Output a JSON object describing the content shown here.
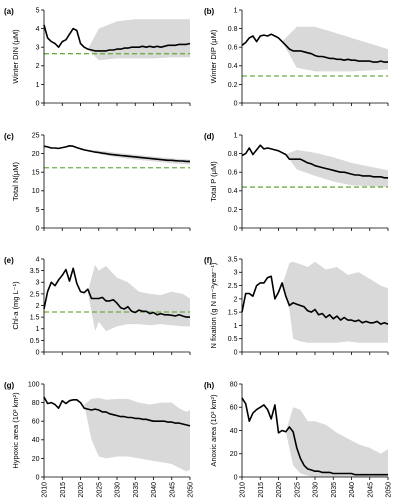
{
  "colors": {
    "line": "#000000",
    "band": "#d9d9d9",
    "reference": "#70ad47"
  },
  "chart_data": [
    {
      "type": "line",
      "panel_label": "(a)",
      "ylabel": "Winter DIN (μM)",
      "ylim": [
        0,
        5
      ],
      "yticks": [
        0,
        1,
        2,
        3,
        4,
        5
      ],
      "ytick_labels": [
        "0",
        "1",
        "2",
        "3",
        "4",
        "5"
      ],
      "xlim": [
        2010,
        2050
      ],
      "xticks": [
        2010,
        2015,
        2020,
        2025,
        2030,
        2035,
        2040,
        2045,
        2050
      ],
      "show_xtick_labels": false,
      "reference": 2.65,
      "x": [
        2010,
        2011,
        2012,
        2013,
        2014,
        2015,
        2016,
        2017,
        2018,
        2019,
        2020,
        2021,
        2022,
        2023,
        2024,
        2025,
        2026,
        2027,
        2028,
        2029,
        2030,
        2031,
        2032,
        2033,
        2034,
        2035,
        2036,
        2037,
        2038,
        2039,
        2040,
        2041,
        2042,
        2043,
        2044,
        2045,
        2046,
        2047,
        2048,
        2049,
        2050
      ],
      "y": [
        4.2,
        3.5,
        3.3,
        3.2,
        3.0,
        3.3,
        3.4,
        3.7,
        4.0,
        3.9,
        3.2,
        3.0,
        2.9,
        2.85,
        2.8,
        2.8,
        2.8,
        2.8,
        2.85,
        2.85,
        2.9,
        2.9,
        2.95,
        2.95,
        3.0,
        3.0,
        3.0,
        3.05,
        3.0,
        3.05,
        3.0,
        3.05,
        3.0,
        3.05,
        3.1,
        3.1,
        3.1,
        3.15,
        3.15,
        3.15,
        3.2
      ],
      "band_x": [
        2022,
        2025,
        2030,
        2035,
        2040,
        2045,
        2050
      ],
      "band_low": [
        2.9,
        2.3,
        2.4,
        2.4,
        2.4,
        2.45,
        2.45
      ],
      "band_high": [
        2.9,
        4.0,
        4.4,
        4.5,
        4.5,
        4.5,
        4.5
      ]
    },
    {
      "type": "line",
      "panel_label": "(b)",
      "ylabel": "Winter DIP (μM)",
      "ylim": [
        0,
        1
      ],
      "yticks": [
        0,
        0.2,
        0.4,
        0.6,
        0.8,
        1
      ],
      "ytick_labels": [
        "0",
        "0.2",
        "0.4",
        "0.6",
        "0.8",
        "1"
      ],
      "xlim": [
        2010,
        2050
      ],
      "xticks": [
        2010,
        2015,
        2020,
        2025,
        2030,
        2035,
        2040,
        2045,
        2050
      ],
      "show_xtick_labels": false,
      "reference": 0.29,
      "x": [
        2010,
        2011,
        2012,
        2013,
        2014,
        2015,
        2016,
        2017,
        2018,
        2019,
        2020,
        2021,
        2022,
        2023,
        2024,
        2025,
        2026,
        2027,
        2028,
        2029,
        2030,
        2031,
        2032,
        2033,
        2034,
        2035,
        2036,
        2037,
        2038,
        2039,
        2040,
        2041,
        2042,
        2043,
        2044,
        2045,
        2046,
        2047,
        2048,
        2049,
        2050
      ],
      "y": [
        0.62,
        0.65,
        0.7,
        0.72,
        0.66,
        0.72,
        0.73,
        0.72,
        0.74,
        0.72,
        0.7,
        0.66,
        0.62,
        0.58,
        0.56,
        0.56,
        0.56,
        0.55,
        0.54,
        0.53,
        0.51,
        0.5,
        0.5,
        0.49,
        0.48,
        0.48,
        0.47,
        0.47,
        0.46,
        0.47,
        0.46,
        0.46,
        0.45,
        0.45,
        0.45,
        0.45,
        0.44,
        0.44,
        0.45,
        0.44,
        0.44
      ],
      "band_x": [
        2021,
        2025,
        2030,
        2035,
        2040,
        2045,
        2050
      ],
      "band_low": [
        0.66,
        0.38,
        0.34,
        0.34,
        0.34,
        0.35,
        0.36
      ],
      "band_high": [
        0.66,
        0.82,
        0.82,
        0.76,
        0.7,
        0.64,
        0.58
      ]
    },
    {
      "type": "line",
      "panel_label": "(c)",
      "ylabel": "Total N(μM)",
      "ylim": [
        0,
        25
      ],
      "yticks": [
        0,
        5,
        10,
        15,
        20,
        25
      ],
      "ytick_labels": [
        "0",
        "5",
        "10",
        "15",
        "20",
        "25"
      ],
      "xlim": [
        2010,
        2050
      ],
      "xticks": [
        2010,
        2015,
        2020,
        2025,
        2030,
        2035,
        2040,
        2045,
        2050
      ],
      "show_xtick_labels": false,
      "reference": 16.2,
      "x": [
        2010,
        2011,
        2012,
        2013,
        2014,
        2015,
        2016,
        2017,
        2018,
        2019,
        2020,
        2021,
        2022,
        2023,
        2024,
        2025,
        2026,
        2027,
        2028,
        2029,
        2030,
        2031,
        2032,
        2033,
        2034,
        2035,
        2036,
        2037,
        2038,
        2039,
        2040,
        2041,
        2042,
        2043,
        2044,
        2045,
        2046,
        2047,
        2048,
        2049,
        2050
      ],
      "y": [
        22.0,
        21.8,
        21.5,
        21.5,
        21.4,
        21.6,
        21.8,
        22.1,
        22.0,
        21.6,
        21.3,
        21.0,
        20.8,
        20.6,
        20.4,
        20.3,
        20.1,
        20.0,
        19.8,
        19.7,
        19.6,
        19.5,
        19.4,
        19.3,
        19.2,
        19.1,
        19.0,
        18.9,
        18.8,
        18.7,
        18.6,
        18.5,
        18.4,
        18.3,
        18.2,
        18.2,
        18.1,
        18.0,
        18.0,
        17.9,
        17.9
      ],
      "band_x": [
        2020,
        2025,
        2030,
        2035,
        2040,
        2045,
        2050
      ],
      "band_low": [
        21.3,
        19.9,
        19.0,
        18.4,
        17.9,
        17.4,
        17.1
      ],
      "band_high": [
        21.3,
        20.8,
        20.2,
        19.7,
        19.2,
        18.7,
        18.4
      ]
    },
    {
      "type": "line",
      "panel_label": "(d)",
      "ylabel": "Total P (μM)",
      "ylim": [
        0,
        1
      ],
      "yticks": [
        0,
        0.2,
        0.4,
        0.6,
        0.8,
        1
      ],
      "ytick_labels": [
        "0",
        "0.2",
        "0.4",
        "0.6",
        "0.8",
        "1"
      ],
      "xlim": [
        2010,
        2050
      ],
      "xticks": [
        2010,
        2015,
        2020,
        2025,
        2030,
        2035,
        2040,
        2045,
        2050
      ],
      "show_xtick_labels": false,
      "reference": 0.44,
      "x": [
        2010,
        2011,
        2012,
        2013,
        2014,
        2015,
        2016,
        2017,
        2018,
        2019,
        2020,
        2021,
        2022,
        2023,
        2024,
        2025,
        2026,
        2027,
        2028,
        2029,
        2030,
        2031,
        2032,
        2033,
        2034,
        2035,
        2036,
        2037,
        2038,
        2039,
        2040,
        2041,
        2042,
        2043,
        2044,
        2045,
        2046,
        2047,
        2048,
        2049,
        2050
      ],
      "y": [
        0.78,
        0.8,
        0.86,
        0.79,
        0.84,
        0.89,
        0.85,
        0.86,
        0.85,
        0.84,
        0.83,
        0.81,
        0.79,
        0.74,
        0.74,
        0.74,
        0.74,
        0.72,
        0.7,
        0.69,
        0.67,
        0.66,
        0.65,
        0.64,
        0.63,
        0.62,
        0.61,
        0.6,
        0.6,
        0.59,
        0.58,
        0.57,
        0.57,
        0.56,
        0.56,
        0.56,
        0.55,
        0.55,
        0.55,
        0.54,
        0.54
      ],
      "band_x": [
        2022,
        2025,
        2030,
        2035,
        2040,
        2045,
        2050
      ],
      "band_low": [
        0.79,
        0.63,
        0.56,
        0.5,
        0.46,
        0.45,
        0.44
      ],
      "band_high": [
        0.79,
        0.84,
        0.81,
        0.76,
        0.7,
        0.66,
        0.62
      ]
    },
    {
      "type": "line",
      "panel_label": "(e)",
      "ylabel": "Chl-a (mg L⁻¹)",
      "ylim": [
        0,
        4
      ],
      "yticks": [
        0,
        0.5,
        1,
        1.5,
        2,
        2.5,
        3,
        3.5,
        4
      ],
      "ytick_labels": [
        "0",
        "0.5",
        "1",
        "1.5",
        "2",
        "2.5",
        "3",
        "3.5",
        "4"
      ],
      "xlim": [
        2010,
        2050
      ],
      "xticks": [
        2010,
        2015,
        2020,
        2025,
        2030,
        2035,
        2040,
        2045,
        2050
      ],
      "show_xtick_labels": false,
      "reference": 1.72,
      "x": [
        2010,
        2011,
        2012,
        2013,
        2014,
        2015,
        2016,
        2017,
        2018,
        2019,
        2020,
        2021,
        2022,
        2023,
        2024,
        2025,
        2026,
        2027,
        2028,
        2029,
        2030,
        2031,
        2032,
        2033,
        2034,
        2035,
        2036,
        2037,
        2038,
        2039,
        2040,
        2041,
        2042,
        2043,
        2044,
        2045,
        2046,
        2047,
        2048,
        2049,
        2050
      ],
      "y": [
        1.85,
        2.6,
        3.0,
        2.85,
        3.1,
        3.3,
        3.55,
        3.05,
        3.6,
        2.95,
        2.6,
        2.55,
        2.7,
        2.3,
        2.3,
        2.3,
        2.35,
        2.2,
        2.2,
        2.25,
        2.1,
        1.9,
        1.85,
        1.95,
        1.75,
        1.7,
        1.8,
        1.75,
        1.75,
        1.65,
        1.7,
        1.6,
        1.65,
        1.6,
        1.6,
        1.58,
        1.55,
        1.6,
        1.55,
        1.5,
        1.5
      ],
      "band_x": [
        2022,
        2024,
        2025,
        2027,
        2030,
        2033,
        2036,
        2039,
        2042,
        2045,
        2048,
        2050
      ],
      "band_low": [
        2.6,
        0.9,
        1.3,
        0.9,
        1.1,
        1.2,
        1.2,
        1.15,
        1.2,
        1.15,
        1.1,
        1.1
      ],
      "band_high": [
        2.6,
        3.75,
        3.5,
        3.7,
        3.2,
        3.0,
        2.6,
        2.5,
        2.45,
        2.6,
        2.5,
        2.3
      ]
    },
    {
      "type": "line",
      "panel_label": "(f)",
      "ylabel": "N fixation (g N m⁻²year⁻¹)",
      "ylim": [
        0,
        3.5
      ],
      "yticks": [
        0,
        0.5,
        1,
        1.5,
        2,
        2.5,
        3,
        3.5
      ],
      "ytick_labels": [
        "0",
        "0.5",
        "1",
        "1.5",
        "2",
        "2.5",
        "3",
        "3.5"
      ],
      "xlim": [
        2010,
        2050
      ],
      "xticks": [
        2010,
        2015,
        2020,
        2025,
        2030,
        2035,
        2040,
        2045,
        2050
      ],
      "show_xtick_labels": false,
      "x": [
        2010,
        2011,
        2012,
        2013,
        2014,
        2015,
        2016,
        2017,
        2018,
        2019,
        2020,
        2021,
        2022,
        2023,
        2024,
        2025,
        2026,
        2027,
        2028,
        2029,
        2030,
        2031,
        2032,
        2033,
        2034,
        2035,
        2036,
        2037,
        2038,
        2039,
        2040,
        2041,
        2042,
        2043,
        2044,
        2045,
        2046,
        2047,
        2048,
        2049,
        2050
      ],
      "y": [
        1.5,
        2.2,
        2.2,
        2.1,
        2.5,
        2.6,
        2.6,
        2.8,
        2.85,
        2.0,
        2.25,
        2.6,
        2.1,
        1.75,
        1.85,
        1.8,
        1.75,
        1.7,
        1.55,
        1.5,
        1.6,
        1.4,
        1.45,
        1.3,
        1.4,
        1.25,
        1.35,
        1.2,
        1.3,
        1.2,
        1.2,
        1.15,
        1.2,
        1.1,
        1.15,
        1.1,
        1.1,
        1.15,
        1.05,
        1.1,
        1.05
      ],
      "band_x": [
        2021,
        2023,
        2024,
        2026,
        2028,
        2030,
        2033,
        2036,
        2039,
        2042,
        2045,
        2048,
        2050
      ],
      "band_low": [
        2.5,
        1.6,
        0.5,
        0.4,
        0.35,
        0.35,
        0.35,
        0.35,
        0.4,
        0.35,
        0.35,
        0.35,
        0.35
      ],
      "band_high": [
        2.5,
        3.35,
        3.4,
        3.3,
        3.2,
        3.4,
        3.1,
        3.2,
        2.9,
        3.0,
        2.75,
        2.5,
        2.4
      ]
    },
    {
      "type": "line",
      "panel_label": "(g)",
      "ylabel": "Hypoxic area (10³ km²)",
      "ylim": [
        0,
        100
      ],
      "yticks": [
        0,
        20,
        40,
        60,
        80,
        100
      ],
      "ytick_labels": [
        "0",
        "20",
        "40",
        "60",
        "80",
        "100"
      ],
      "xlim": [
        2010,
        2050
      ],
      "xticks": [
        2010,
        2015,
        2020,
        2025,
        2030,
        2035,
        2040,
        2045,
        2050
      ],
      "show_xtick_labels": true,
      "x": [
        2010,
        2011,
        2012,
        2013,
        2014,
        2015,
        2016,
        2017,
        2018,
        2019,
        2020,
        2021,
        2022,
        2023,
        2024,
        2025,
        2026,
        2027,
        2028,
        2029,
        2030,
        2031,
        2032,
        2033,
        2034,
        2035,
        2036,
        2037,
        2038,
        2039,
        2040,
        2041,
        2042,
        2043,
        2044,
        2045,
        2046,
        2047,
        2048,
        2049,
        2050
      ],
      "y": [
        86,
        79,
        80,
        78,
        74,
        82,
        79,
        82,
        83,
        83,
        80,
        74,
        73,
        72,
        73,
        72,
        70,
        70,
        68,
        67,
        66,
        65,
        65,
        64,
        64,
        63,
        63,
        62,
        62,
        61,
        60,
        60,
        60,
        60,
        59,
        59,
        58,
        58,
        57,
        56,
        55
      ],
      "band_x": [
        2021,
        2023,
        2025,
        2027,
        2030,
        2033,
        2036,
        2039,
        2042,
        2045,
        2047,
        2049,
        2050
      ],
      "band_low": [
        78,
        40,
        22,
        20,
        22,
        22,
        20,
        18,
        16,
        14,
        10,
        6,
        8
      ],
      "band_high": [
        78,
        84,
        85,
        83,
        84,
        84,
        80,
        78,
        80,
        80,
        74,
        70,
        72
      ]
    },
    {
      "type": "line",
      "panel_label": "(h)",
      "ylabel": "Anoxic area (10³ km²)",
      "ylim": [
        0,
        80
      ],
      "yticks": [
        0,
        20,
        40,
        60,
        80
      ],
      "ytick_labels": [
        "0",
        "20",
        "40",
        "60",
        "80"
      ],
      "xlim": [
        2010,
        2050
      ],
      "xticks": [
        2010,
        2015,
        2020,
        2025,
        2030,
        2035,
        2040,
        2045,
        2050
      ],
      "show_xtick_labels": true,
      "x": [
        2010,
        2011,
        2012,
        2013,
        2014,
        2015,
        2016,
        2017,
        2018,
        2019,
        2020,
        2021,
        2022,
        2023,
        2024,
        2025,
        2026,
        2027,
        2028,
        2029,
        2030,
        2031,
        2032,
        2033,
        2034,
        2035,
        2036,
        2037,
        2038,
        2039,
        2040,
        2041,
        2042,
        2043,
        2044,
        2045,
        2046,
        2047,
        2048,
        2049,
        2050
      ],
      "y": [
        68,
        63,
        48,
        55,
        58,
        60,
        62,
        58,
        50,
        62,
        38,
        40,
        39,
        43,
        39,
        25,
        16,
        10,
        7,
        6,
        5,
        5,
        4,
        4,
        4,
        3,
        3,
        3,
        3,
        3,
        3,
        2,
        2,
        2,
        2,
        2,
        2,
        2,
        2,
        2,
        2
      ],
      "band_x": [
        2022,
        2024,
        2026,
        2028,
        2030,
        2033,
        2036,
        2039,
        2042,
        2045,
        2048,
        2050
      ],
      "band_low": [
        39,
        10,
        3,
        1,
        0,
        0,
        0,
        0,
        0,
        0,
        0,
        0
      ],
      "band_high": [
        39,
        60,
        58,
        48,
        48,
        45,
        38,
        33,
        28,
        25,
        20,
        24
      ]
    }
  ]
}
